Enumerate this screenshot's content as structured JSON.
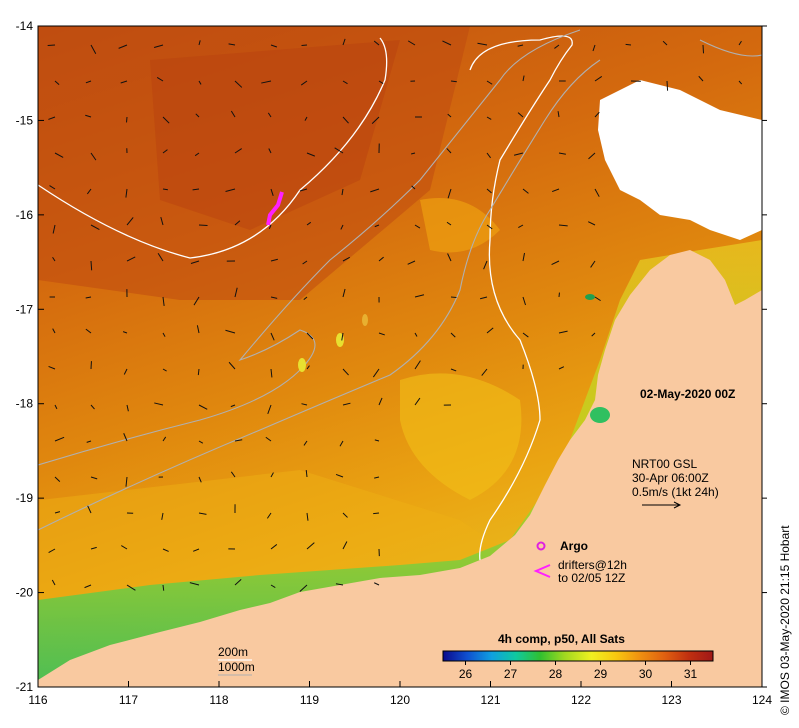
{
  "map": {
    "lon_range": [
      116,
      124
    ],
    "lat_range": [
      -21,
      -14
    ],
    "x_ticks": [
      "116",
      "117",
      "118",
      "119",
      "120",
      "121",
      "122",
      "123",
      "124"
    ],
    "y_ticks": [
      "-14",
      "-15",
      "-16",
      "-17",
      "-18",
      "-19",
      "-20",
      "-21"
    ],
    "land_color": "#f9c9a0",
    "cloud_color": "#ffffff",
    "grid": false
  },
  "labels": {
    "date": "02-May-2020 00Z",
    "credit": "© IMOS 03-May-2020 21:15 Hobart",
    "current_title": "NRT00 GSL",
    "current_time": "30-Apr 06:00Z",
    "current_scale": "0.5m/s (1kt 24h)",
    "argo_label": "Argo",
    "drifters_line1": "drifters@12h",
    "drifters_line2": "to 02/05 12Z",
    "depth_200": "200m",
    "depth_1000": "1000m"
  },
  "colorbar": {
    "title": "4h comp, p50, All Sats",
    "ticks": [
      "26",
      "27",
      "28",
      "29",
      "30",
      "31"
    ],
    "range": [
      25.5,
      31.5
    ],
    "colors": [
      "#0a0a8c",
      "#1050d0",
      "#10a0e0",
      "#10c8a0",
      "#30c030",
      "#a0d820",
      "#f0f020",
      "#f8c810",
      "#f09010",
      "#e06010",
      "#c03010",
      "#a01818"
    ]
  },
  "legend_colors": {
    "argo": "#e020e0",
    "drifter": "#ff20ff",
    "contour_200": "#ffffff",
    "contour_1000": "#b0b0b0"
  }
}
